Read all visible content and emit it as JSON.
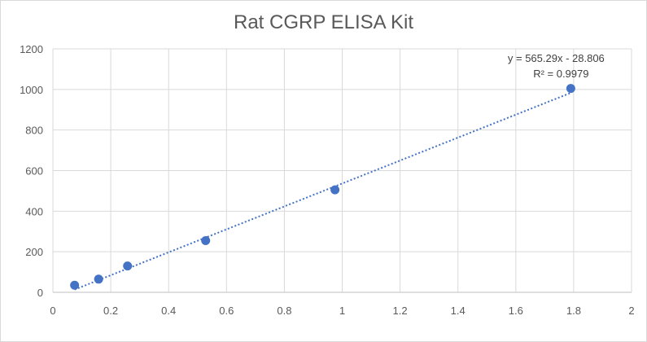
{
  "chart_data": {
    "type": "scatter",
    "title": "Rat CGRP ELISA Kit",
    "xlabel": "",
    "ylabel": "",
    "xlim": [
      0,
      2
    ],
    "ylim": [
      0,
      1200
    ],
    "x_ticks": [
      "0",
      "0.2",
      "0.4",
      "0.6",
      "0.8",
      "1",
      "1.2",
      "1.4",
      "1.6",
      "1.8",
      "2"
    ],
    "y_ticks": [
      "0",
      "200",
      "400",
      "600",
      "800",
      "1000",
      "1200"
    ],
    "grid": true,
    "legend": "none",
    "series": [
      {
        "points": [
          {
            "x": 0.075,
            "y": 35
          },
          {
            "x": 0.158,
            "y": 65
          },
          {
            "x": 0.258,
            "y": 130
          },
          {
            "x": 0.528,
            "y": 255
          },
          {
            "x": 0.975,
            "y": 505
          },
          {
            "x": 1.79,
            "y": 1005
          }
        ],
        "color": "#4472c4"
      }
    ],
    "trendline": {
      "type": "linear",
      "slope": 565.29,
      "intercept": -28.806,
      "x_range": [
        0.075,
        1.79
      ],
      "color": "#4472c4",
      "style": "dotted",
      "equation_label": "y = 565.29x - 28.806",
      "r2_label": "R² = 0.9979"
    }
  }
}
